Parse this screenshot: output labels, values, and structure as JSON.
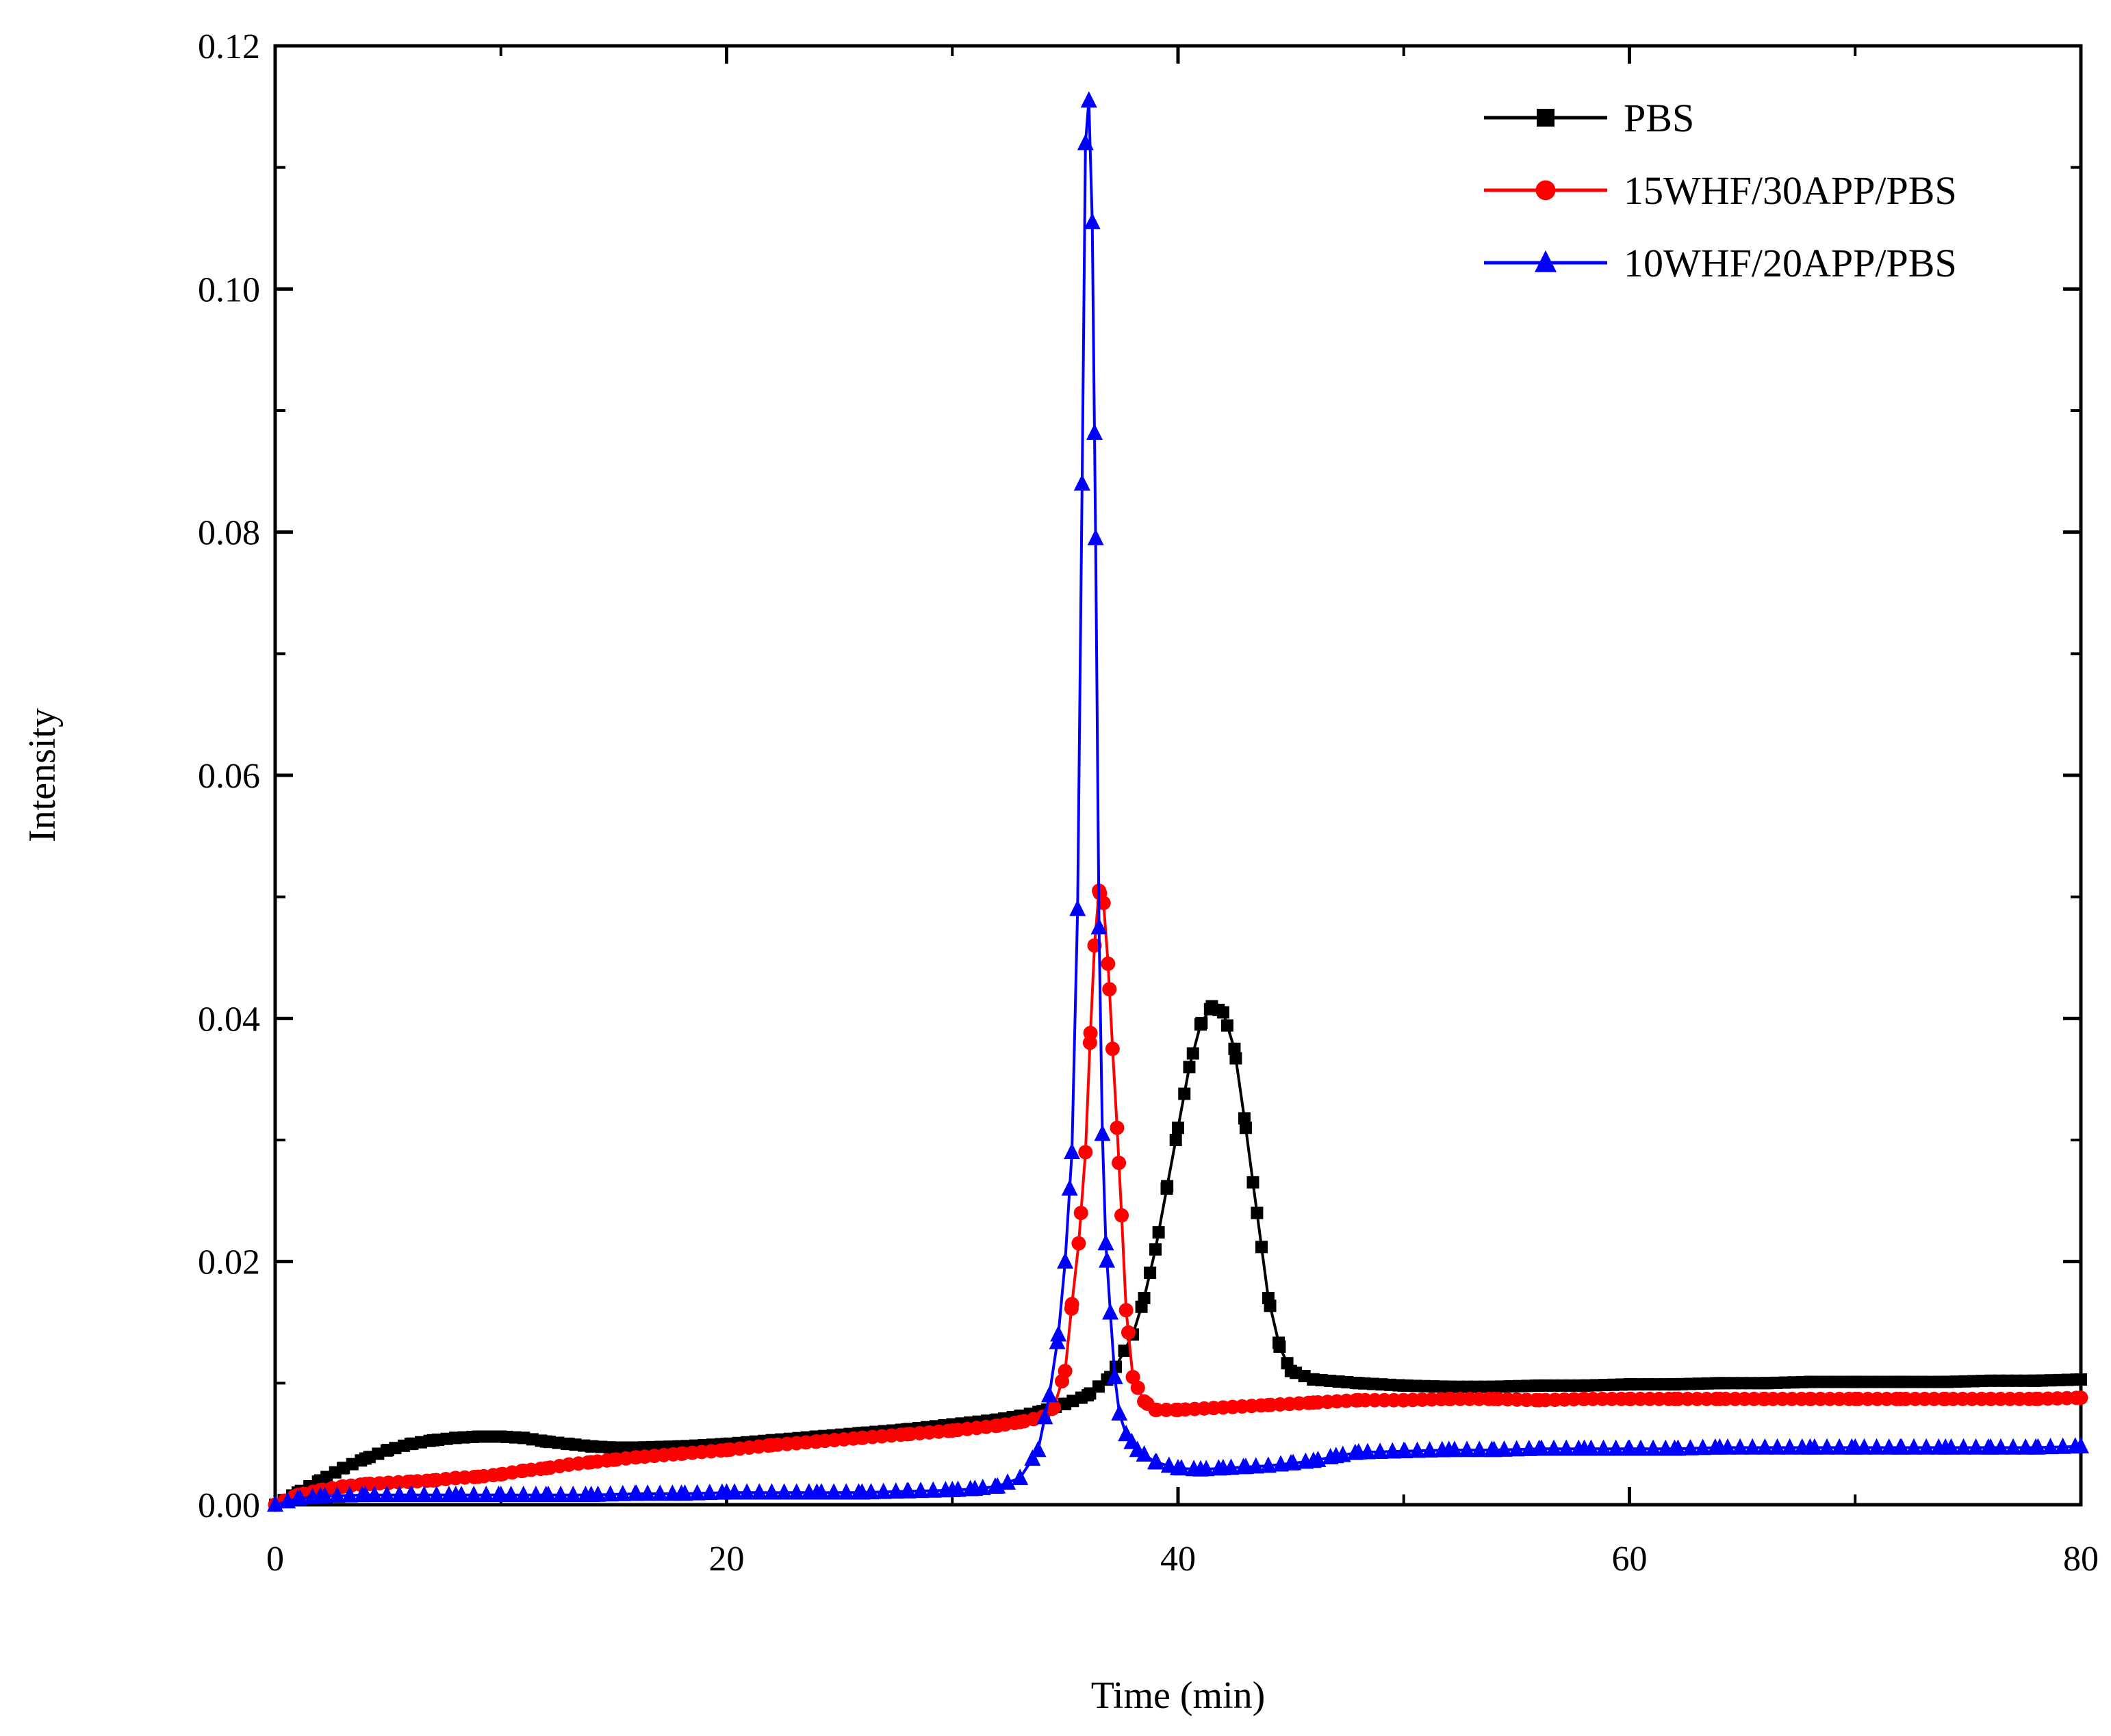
{
  "chart_data": {
    "type": "line",
    "title": "",
    "xlabel": "Time (min)",
    "ylabel": "Intensity",
    "xlim": [
      0,
      80
    ],
    "ylim": [
      0,
      0.12
    ],
    "xticks": [
      0,
      20,
      40,
      60,
      80
    ],
    "xtick_labels": [
      "0",
      "20",
      "40",
      "60",
      "80"
    ],
    "yticks": [
      0,
      0.02,
      0.04,
      0.06,
      0.08,
      0.1,
      0.12
    ],
    "ytick_labels": [
      "0.00",
      "0.02",
      "0.04",
      "0.06",
      "0.08",
      "0.10",
      "0.12"
    ],
    "grid": false,
    "legend_position": "top-right",
    "series": [
      {
        "name": "PBS",
        "color": "#000000",
        "marker": "square",
        "points": [
          [
            0,
            0.0
          ],
          [
            1,
            0.001
          ],
          [
            2,
            0.002
          ],
          [
            3,
            0.003
          ],
          [
            4,
            0.0038
          ],
          [
            5,
            0.0045
          ],
          [
            6,
            0.005
          ],
          [
            7,
            0.0053
          ],
          [
            8,
            0.0055
          ],
          [
            9,
            0.0056
          ],
          [
            10,
            0.0056
          ],
          [
            11,
            0.0055
          ],
          [
            12,
            0.0052
          ],
          [
            13,
            0.005
          ],
          [
            14,
            0.0048
          ],
          [
            15,
            0.0047
          ],
          [
            16,
            0.0047
          ],
          [
            18,
            0.0048
          ],
          [
            20,
            0.005
          ],
          [
            22,
            0.0053
          ],
          [
            24,
            0.0056
          ],
          [
            26,
            0.0059
          ],
          [
            28,
            0.0062
          ],
          [
            30,
            0.0066
          ],
          [
            32,
            0.007
          ],
          [
            33,
            0.0073
          ],
          [
            34,
            0.0077
          ],
          [
            35,
            0.0083
          ],
          [
            36,
            0.009
          ],
          [
            37,
            0.0105
          ],
          [
            38,
            0.014
          ],
          [
            38.5,
            0.017
          ],
          [
            39,
            0.021
          ],
          [
            39.5,
            0.026
          ],
          [
            40,
            0.031
          ],
          [
            40.5,
            0.036
          ],
          [
            41,
            0.0395
          ],
          [
            41.5,
            0.041
          ],
          [
            42,
            0.0405
          ],
          [
            42.5,
            0.0375
          ],
          [
            43,
            0.031
          ],
          [
            43.5,
            0.024
          ],
          [
            44,
            0.017
          ],
          [
            44.5,
            0.013
          ],
          [
            45,
            0.011
          ],
          [
            46,
            0.0103
          ],
          [
            48,
            0.01
          ],
          [
            50,
            0.0098
          ],
          [
            52,
            0.0097
          ],
          [
            54,
            0.0097
          ],
          [
            56,
            0.0098
          ],
          [
            58,
            0.0098
          ],
          [
            60,
            0.0099
          ],
          [
            62,
            0.0099
          ],
          [
            64,
            0.01
          ],
          [
            66,
            0.01
          ],
          [
            68,
            0.0101
          ],
          [
            70,
            0.0101
          ],
          [
            72,
            0.0101
          ],
          [
            74,
            0.0101
          ],
          [
            76,
            0.0102
          ],
          [
            78,
            0.0102
          ],
          [
            80,
            0.0103
          ]
        ]
      },
      {
        "name": "15WHF/30APP/PBS",
        "color": "#ff0000",
        "marker": "circle",
        "points": [
          [
            0,
            0.0
          ],
          [
            1,
            0.0008
          ],
          [
            2,
            0.0012
          ],
          [
            3,
            0.0015
          ],
          [
            4,
            0.0017
          ],
          [
            5,
            0.0018
          ],
          [
            6,
            0.0019
          ],
          [
            7,
            0.002
          ],
          [
            8,
            0.0022
          ],
          [
            9,
            0.0023
          ],
          [
            10,
            0.0025
          ],
          [
            11,
            0.0028
          ],
          [
            12,
            0.003
          ],
          [
            13,
            0.0033
          ],
          [
            14,
            0.0035
          ],
          [
            15,
            0.0037
          ],
          [
            16,
            0.0039
          ],
          [
            18,
            0.0042
          ],
          [
            20,
            0.0045
          ],
          [
            22,
            0.0049
          ],
          [
            24,
            0.0052
          ],
          [
            26,
            0.0055
          ],
          [
            28,
            0.0058
          ],
          [
            30,
            0.0061
          ],
          [
            32,
            0.0065
          ],
          [
            33,
            0.0068
          ],
          [
            34,
            0.0072
          ],
          [
            34.5,
            0.008
          ],
          [
            35,
            0.011
          ],
          [
            35.3,
            0.0165
          ],
          [
            35.6,
            0.0215
          ],
          [
            35.9,
            0.029
          ],
          [
            36.1,
            0.038
          ],
          [
            36.3,
            0.046
          ],
          [
            36.5,
            0.0505
          ],
          [
            36.7,
            0.0495
          ],
          [
            36.9,
            0.0445
          ],
          [
            37.1,
            0.0375
          ],
          [
            37.3,
            0.031
          ],
          [
            37.5,
            0.0238
          ],
          [
            37.7,
            0.016
          ],
          [
            38,
            0.0105
          ],
          [
            38.5,
            0.0085
          ],
          [
            39,
            0.0078
          ],
          [
            40,
            0.0078
          ],
          [
            42,
            0.008
          ],
          [
            44,
            0.0082
          ],
          [
            46,
            0.0084
          ],
          [
            48,
            0.0086
          ],
          [
            50,
            0.0086
          ],
          [
            52,
            0.0087
          ],
          [
            54,
            0.0087
          ],
          [
            56,
            0.0086
          ],
          [
            58,
            0.0087
          ],
          [
            60,
            0.0087
          ],
          [
            62,
            0.0087
          ],
          [
            64,
            0.0087
          ],
          [
            66,
            0.0087
          ],
          [
            68,
            0.0087
          ],
          [
            70,
            0.0087
          ],
          [
            72,
            0.0087
          ],
          [
            74,
            0.0087
          ],
          [
            76,
            0.0087
          ],
          [
            78,
            0.0087
          ],
          [
            80,
            0.0088
          ]
        ]
      },
      {
        "name": "10WHF/20APP/PBS",
        "color": "#0000ff",
        "marker": "triangle",
        "points": [
          [
            0,
            0.0
          ],
          [
            1,
            0.0005
          ],
          [
            2,
            0.0007
          ],
          [
            4,
            0.0008
          ],
          [
            6,
            0.0008
          ],
          [
            8,
            0.0008
          ],
          [
            10,
            0.0008
          ],
          [
            12,
            0.0008
          ],
          [
            14,
            0.0008
          ],
          [
            16,
            0.0009
          ],
          [
            18,
            0.0009
          ],
          [
            20,
            0.001
          ],
          [
            22,
            0.001
          ],
          [
            24,
            0.001
          ],
          [
            26,
            0.001
          ],
          [
            28,
            0.0011
          ],
          [
            30,
            0.0012
          ],
          [
            31,
            0.0013
          ],
          [
            32,
            0.0015
          ],
          [
            33,
            0.0022
          ],
          [
            33.8,
            0.0045
          ],
          [
            34.3,
            0.009
          ],
          [
            34.7,
            0.014
          ],
          [
            35,
            0.02
          ],
          [
            35.3,
            0.029
          ],
          [
            35.55,
            0.049
          ],
          [
            35.75,
            0.084
          ],
          [
            35.9,
            0.112
          ],
          [
            36.05,
            0.1155
          ],
          [
            36.2,
            0.1055
          ],
          [
            36.35,
            0.0795
          ],
          [
            36.5,
            0.0475
          ],
          [
            36.65,
            0.0305
          ],
          [
            36.8,
            0.0215
          ],
          [
            37,
            0.0158
          ],
          [
            37.2,
            0.0105
          ],
          [
            37.4,
            0.0075
          ],
          [
            37.7,
            0.0058
          ],
          [
            38.2,
            0.0045
          ],
          [
            39,
            0.0035
          ],
          [
            40,
            0.003
          ],
          [
            41,
            0.0029
          ],
          [
            42,
            0.003
          ],
          [
            43,
            0.0031
          ],
          [
            44,
            0.0032
          ],
          [
            45,
            0.0034
          ],
          [
            46,
            0.0036
          ],
          [
            47,
            0.004
          ],
          [
            48,
            0.0043
          ],
          [
            50,
            0.0044
          ],
          [
            52,
            0.0045
          ],
          [
            54,
            0.0045
          ],
          [
            56,
            0.0046
          ],
          [
            58,
            0.0046
          ],
          [
            60,
            0.0046
          ],
          [
            62,
            0.0046
          ],
          [
            64,
            0.0047
          ],
          [
            66,
            0.0047
          ],
          [
            68,
            0.0047
          ],
          [
            70,
            0.0047
          ],
          [
            72,
            0.0047
          ],
          [
            74,
            0.0047
          ],
          [
            76,
            0.0047
          ],
          [
            78,
            0.0047
          ],
          [
            80,
            0.0048
          ]
        ]
      }
    ]
  }
}
